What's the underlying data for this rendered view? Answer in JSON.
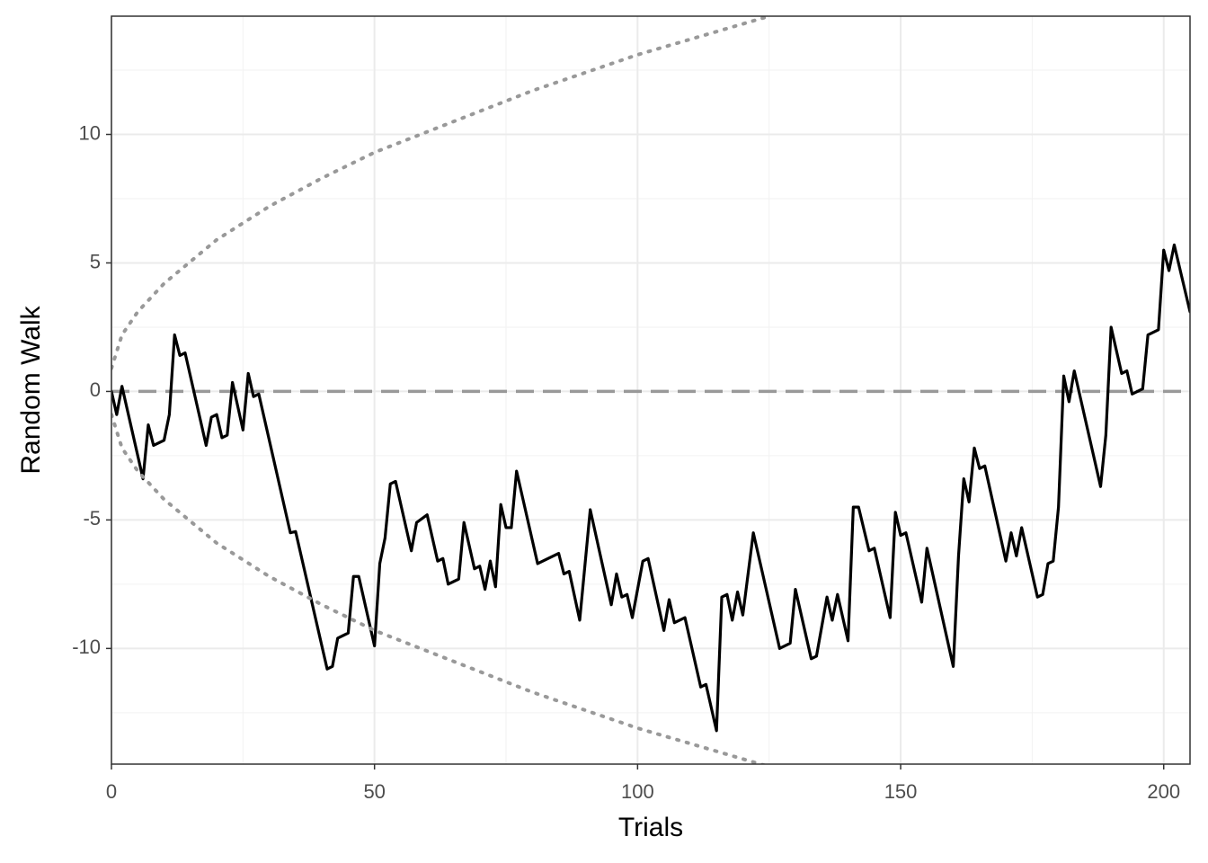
{
  "chart_data": {
    "type": "line",
    "x_label": "Trials",
    "y_label": "Random Walk",
    "xlim": [
      0,
      205
    ],
    "ylim": [
      -14.5,
      14.6
    ],
    "xticks": [
      0,
      50,
      100,
      150,
      200
    ],
    "yticks": [
      -10,
      -5,
      0,
      5,
      10
    ],
    "x_minor_grid": [
      25,
      75,
      125,
      175
    ],
    "y_minor_grid": [
      -12.5,
      -7.5,
      -2.5,
      2.5,
      7.5,
      12.5
    ],
    "grid": true,
    "hline": 0,
    "hline_color": "#999999",
    "series": [
      {
        "color": "#000000",
        "style": "solid",
        "x": [
          0,
          1,
          2,
          6,
          7,
          8,
          10,
          11,
          12,
          13,
          14,
          18,
          19,
          20,
          21,
          22,
          23,
          25,
          26,
          27,
          28,
          34,
          35,
          41,
          42,
          43,
          45,
          46,
          47,
          50,
          51,
          52,
          53,
          54,
          57,
          58,
          60,
          62,
          63,
          64,
          66,
          67,
          69,
          70,
          71,
          72,
          73,
          74,
          75,
          76,
          77,
          81,
          85,
          86,
          87,
          89,
          91,
          95,
          96,
          97,
          98,
          99,
          101,
          102,
          105,
          106,
          107,
          109,
          112,
          113,
          115,
          116,
          117,
          118,
          119,
          120,
          122,
          127,
          129,
          130,
          133,
          134,
          136,
          137,
          138,
          140,
          141,
          142,
          144,
          145,
          148,
          149,
          150,
          151,
          154,
          155,
          160,
          161,
          162,
          163,
          164,
          165,
          166,
          170,
          171,
          172,
          173,
          176,
          177,
          178,
          179,
          180,
          181,
          182,
          183,
          188,
          189,
          190,
          192,
          193,
          194,
          196,
          197,
          199,
          200,
          201,
          202,
          205
        ],
        "values": [
          0,
          -0.9,
          0.2,
          -3.4,
          -1.3,
          -2.1,
          -1.9,
          -0.9,
          2.2,
          1.4,
          1.5,
          -2.1,
          -1.0,
          -0.9,
          -1.8,
          -1.7,
          0.35,
          -1.5,
          0.7,
          -0.2,
          -0.1,
          -5.5,
          -5.45,
          -10.8,
          -10.7,
          -9.6,
          -9.4,
          -7.2,
          -7.2,
          -9.9,
          -6.7,
          -5.7,
          -3.6,
          -3.5,
          -6.2,
          -5.1,
          -4.8,
          -6.6,
          -6.5,
          -7.5,
          -7.3,
          -5.1,
          -6.9,
          -6.8,
          -7.7,
          -6.6,
          -7.6,
          -4.4,
          -5.3,
          -5.3,
          -3.1,
          -6.7,
          -6.3,
          -7.1,
          -7.0,
          -8.9,
          -4.6,
          -8.3,
          -7.1,
          -8.0,
          -7.9,
          -8.8,
          -6.6,
          -6.5,
          -9.3,
          -8.1,
          -9.0,
          -8.8,
          -11.5,
          -11.4,
          -13.2,
          -8.0,
          -7.9,
          -8.9,
          -7.8,
          -8.7,
          -5.5,
          -10.0,
          -9.8,
          -7.7,
          -10.4,
          -10.3,
          -8.0,
          -8.9,
          -7.9,
          -9.7,
          -4.5,
          -4.5,
          -6.2,
          -6.1,
          -8.8,
          -4.7,
          -5.6,
          -5.5,
          -8.2,
          -6.1,
          -10.7,
          -6.4,
          -3.4,
          -4.3,
          -2.2,
          -3.0,
          -2.9,
          -6.6,
          -5.5,
          -6.4,
          -5.3,
          -8.0,
          -7.9,
          -6.7,
          -6.6,
          -4.5,
          0.6,
          -0.4,
          0.8,
          -3.7,
          -1.7,
          2.5,
          0.7,
          0.8,
          -0.1,
          0.1,
          2.2,
          2.4,
          5.5,
          4.7,
          5.7,
          3.1
        ]
      },
      {
        "color": "#999999",
        "style": "dotted",
        "x": [
          0,
          2,
          5,
          10,
          20,
          30,
          40,
          50,
          60,
          80,
          100,
          120,
          125
        ],
        "values": [
          0.9,
          2.2,
          3.1,
          4.2,
          5.9,
          7.2,
          8.3,
          9.3,
          10.1,
          11.7,
          13.1,
          14.3,
          14.6
        ]
      },
      {
        "color": "#999999",
        "style": "dotted",
        "x": [
          0,
          2,
          5,
          10,
          20,
          30,
          40,
          50,
          60,
          80,
          100,
          120,
          125
        ],
        "values": [
          -0.9,
          -2.2,
          -3.1,
          -4.2,
          -5.9,
          -7.2,
          -8.3,
          -9.3,
          -10.1,
          -11.7,
          -13.1,
          -14.3,
          -14.6
        ]
      }
    ]
  }
}
